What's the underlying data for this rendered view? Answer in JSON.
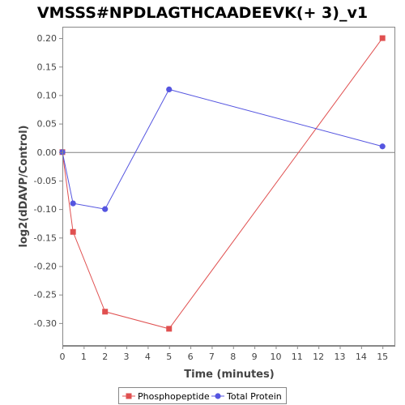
{
  "chart_data": {
    "type": "line",
    "title": "VMSSS#NPDLAGTHCAADEEVK(+ 3)_v1",
    "xlabel": "Time (minutes)",
    "ylabel": "log2(dDAVP/Control)",
    "xlim": [
      0,
      15.6
    ],
    "ylim": [
      -0.34,
      0.22
    ],
    "xticks": [
      0,
      1,
      2,
      3,
      4,
      5,
      6,
      7,
      8,
      9,
      10,
      11,
      12,
      13,
      14,
      15
    ],
    "yticks": [
      0.2,
      0.15,
      0.1,
      0.05,
      0.0,
      -0.05,
      -0.1,
      -0.15,
      -0.2,
      -0.25,
      -0.3
    ],
    "ytick_labels": [
      "0.20",
      "0.15",
      "0.10",
      "0.05",
      "0.00",
      "-0.05",
      "-0.10",
      "-0.15",
      "-0.20",
      "-0.25",
      "-0.30"
    ],
    "xtick_labels": [
      "0",
      "1",
      "2",
      "3",
      "4",
      "5",
      "6",
      "7",
      "8",
      "9",
      "10",
      "11",
      "12",
      "13",
      "14",
      "15"
    ],
    "grid": false,
    "zero_line": true,
    "legend_position": "bottom",
    "series": [
      {
        "name": "Phosphopeptide",
        "color": "#e05050",
        "marker": "square",
        "x": [
          0,
          0.5,
          2,
          5,
          15
        ],
        "y": [
          0.0,
          -0.14,
          -0.28,
          -0.31,
          0.2
        ]
      },
      {
        "name": "Total Protein",
        "color": "#5555e0",
        "marker": "circle",
        "x": [
          0,
          0.5,
          2,
          5,
          15
        ],
        "y": [
          0.0,
          -0.09,
          -0.1,
          0.11,
          0.01
        ]
      }
    ]
  }
}
